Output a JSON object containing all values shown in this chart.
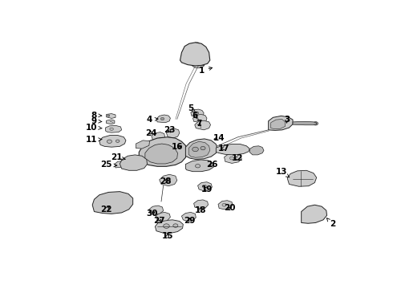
{
  "bg_color": "#ffffff",
  "fig_width": 4.9,
  "fig_height": 3.6,
  "dpi": 100,
  "label_fontsize": 7.5,
  "label_fontweight": "bold",
  "label_color": "#000000",
  "arrow_color": "#000000",
  "line_color": "#000000",
  "part_fill": "#d8d8d8",
  "part_edge": "#222222",
  "label_positions": {
    "1": [
      0.5,
      0.838,
      0.545,
      0.855
    ],
    "2": [
      0.93,
      0.148,
      0.91,
      0.178
    ],
    "3": [
      0.78,
      0.618,
      0.78,
      0.59
    ],
    "4": [
      0.33,
      0.618,
      0.36,
      0.622
    ],
    "5": [
      0.465,
      0.668,
      0.482,
      0.648
    ],
    "6": [
      0.478,
      0.635,
      0.488,
      0.622
    ],
    "7": [
      0.492,
      0.6,
      0.5,
      0.588
    ],
    "8": [
      0.148,
      0.638,
      0.182,
      0.635
    ],
    "9": [
      0.148,
      0.612,
      0.182,
      0.608
    ],
    "10": [
      0.14,
      0.584,
      0.182,
      0.578
    ],
    "11": [
      0.14,
      0.528,
      0.182,
      0.53
    ],
    "12": [
      0.618,
      0.445,
      0.598,
      0.448
    ],
    "13": [
      0.762,
      0.385,
      0.79,
      0.358
    ],
    "14": [
      0.558,
      0.535,
      0.532,
      0.528
    ],
    "15": [
      0.388,
      0.095,
      0.388,
      0.118
    ],
    "16": [
      0.42,
      0.495,
      0.445,
      0.502
    ],
    "17": [
      0.575,
      0.49,
      0.555,
      0.485
    ],
    "18": [
      0.498,
      0.212,
      0.498,
      0.228
    ],
    "19": [
      0.518,
      0.305,
      0.51,
      0.318
    ],
    "20": [
      0.592,
      0.22,
      0.578,
      0.228
    ],
    "21": [
      0.222,
      0.448,
      0.252,
      0.44
    ],
    "22": [
      0.188,
      0.215,
      0.205,
      0.238
    ],
    "23": [
      0.395,
      0.572,
      0.4,
      0.558
    ],
    "24": [
      0.335,
      0.558,
      0.348,
      0.548
    ],
    "25": [
      0.188,
      0.415,
      0.225,
      0.412
    ],
    "26": [
      0.535,
      0.415,
      0.525,
      0.408
    ],
    "27": [
      0.362,
      0.162,
      0.372,
      0.178
    ],
    "28": [
      0.382,
      0.342,
      0.392,
      0.348
    ],
    "29": [
      0.462,
      0.162,
      0.462,
      0.178
    ],
    "30": [
      0.338,
      0.195,
      0.355,
      0.212
    ]
  }
}
